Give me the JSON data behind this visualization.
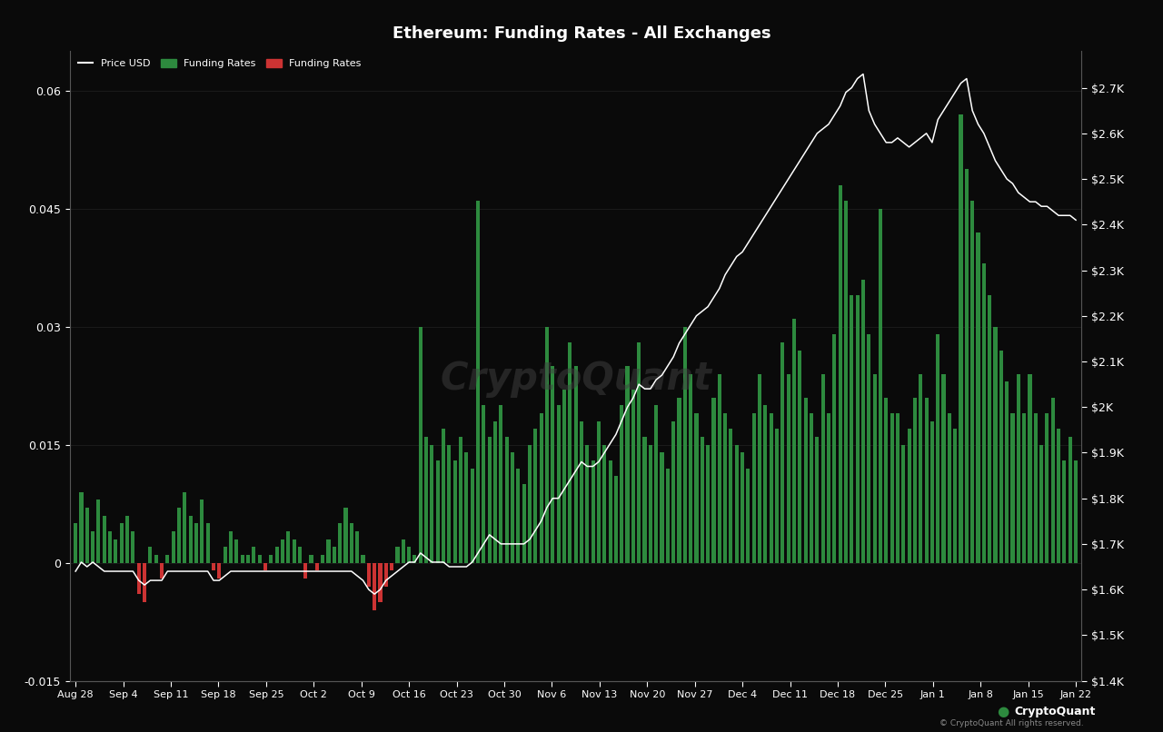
{
  "title": "Ethereum: Funding Rates - All Exchanges",
  "background_color": "#0a0a0a",
  "text_color": "#ffffff",
  "grid_color": "#222222",
  "bar_color_pos": "#2d8a3e",
  "bar_color_neg": "#cc3333",
  "line_color": "#ffffff",
  "ylim_left": [
    -0.015,
    0.065
  ],
  "ylim_right": [
    1400,
    2780
  ],
  "yticks_left": [
    -0.015,
    0,
    0.015,
    0.03,
    0.045,
    0.06
  ],
  "yticks_right": [
    1400,
    1500,
    1600,
    1700,
    1800,
    1900,
    2000,
    2100,
    2200,
    2300,
    2400,
    2500,
    2600,
    2700
  ],
  "xtick_labels": [
    "Aug 28",
    "Sep 4",
    "Sep 11",
    "Sep 18",
    "Sep 25",
    "Oct 2",
    "Oct 9",
    "Oct 16",
    "Oct 23",
    "Oct 30",
    "Nov 6",
    "Nov 13",
    "Nov 20",
    "Nov 27",
    "Dec 4",
    "Dec 11",
    "Dec 18",
    "Dec 25",
    "Jan 1",
    "Jan 8",
    "Jan 15",
    "Jan 22"
  ],
  "watermark": "CryptoQuant",
  "logo_text": "CryptoQuant",
  "copyright_text": "© CryptoQuant All rights reserved.",
  "funding_rates": [
    0.005,
    0.009,
    0.007,
    0.004,
    0.008,
    0.006,
    0.004,
    0.003,
    0.005,
    0.006,
    0.004,
    -0.004,
    -0.005,
    0.002,
    0.001,
    -0.002,
    0.001,
    0.004,
    0.007,
    0.009,
    0.006,
    0.005,
    0.008,
    0.005,
    -0.001,
    -0.002,
    0.002,
    0.004,
    0.003,
    0.001,
    0.001,
    0.002,
    0.001,
    -0.001,
    0.001,
    0.002,
    0.003,
    0.004,
    0.003,
    0.002,
    -0.002,
    0.001,
    -0.001,
    0.001,
    0.003,
    0.002,
    0.005,
    0.007,
    0.005,
    0.004,
    0.001,
    -0.003,
    -0.006,
    -0.005,
    -0.003,
    -0.001,
    0.002,
    0.003,
    0.002,
    0.001,
    0.03,
    0.016,
    0.015,
    0.013,
    0.017,
    0.015,
    0.013,
    0.016,
    0.014,
    0.012,
    0.046,
    0.02,
    0.016,
    0.018,
    0.02,
    0.016,
    0.014,
    0.012,
    0.01,
    0.015,
    0.017,
    0.019,
    0.03,
    0.025,
    0.02,
    0.022,
    0.028,
    0.025,
    0.018,
    0.015,
    0.013,
    0.018,
    0.015,
    0.013,
    0.011,
    0.02,
    0.025,
    0.022,
    0.028,
    0.016,
    0.015,
    0.02,
    0.014,
    0.012,
    0.018,
    0.021,
    0.03,
    0.024,
    0.019,
    0.016,
    0.015,
    0.021,
    0.024,
    0.019,
    0.017,
    0.015,
    0.014,
    0.012,
    0.019,
    0.024,
    0.02,
    0.019,
    0.017,
    0.028,
    0.024,
    0.031,
    0.027,
    0.021,
    0.019,
    0.016,
    0.024,
    0.019,
    0.029,
    0.048,
    0.046,
    0.034,
    0.034,
    0.036,
    0.029,
    0.024,
    0.045,
    0.021,
    0.019,
    0.019,
    0.015,
    0.017,
    0.021,
    0.024,
    0.021,
    0.018,
    0.029,
    0.024,
    0.019,
    0.017,
    0.057,
    0.05,
    0.046,
    0.042,
    0.038,
    0.034,
    0.03,
    0.027,
    0.023,
    0.019,
    0.024,
    0.019,
    0.024,
    0.019,
    0.015,
    0.019,
    0.021,
    0.017,
    0.013,
    0.016,
    0.013
  ],
  "price_usd": [
    1640,
    1660,
    1650,
    1660,
    1650,
    1640,
    1640,
    1640,
    1640,
    1640,
    1640,
    1620,
    1610,
    1620,
    1620,
    1620,
    1640,
    1640,
    1640,
    1640,
    1640,
    1640,
    1640,
    1640,
    1620,
    1620,
    1630,
    1640,
    1640,
    1640,
    1640,
    1640,
    1640,
    1640,
    1640,
    1640,
    1640,
    1640,
    1640,
    1640,
    1640,
    1640,
    1640,
    1640,
    1640,
    1640,
    1640,
    1640,
    1640,
    1630,
    1620,
    1600,
    1590,
    1600,
    1620,
    1630,
    1640,
    1650,
    1660,
    1660,
    1680,
    1670,
    1660,
    1660,
    1660,
    1650,
    1650,
    1650,
    1650,
    1660,
    1680,
    1700,
    1720,
    1710,
    1700,
    1700,
    1700,
    1700,
    1700,
    1710,
    1730,
    1750,
    1780,
    1800,
    1800,
    1820,
    1840,
    1860,
    1880,
    1870,
    1870,
    1880,
    1900,
    1920,
    1940,
    1970,
    2000,
    2020,
    2050,
    2040,
    2040,
    2060,
    2070,
    2090,
    2110,
    2140,
    2160,
    2180,
    2200,
    2210,
    2220,
    2240,
    2260,
    2290,
    2310,
    2330,
    2340,
    2360,
    2380,
    2400,
    2420,
    2440,
    2460,
    2480,
    2500,
    2520,
    2540,
    2560,
    2580,
    2600,
    2610,
    2620,
    2640,
    2660,
    2690,
    2700,
    2720,
    2730,
    2650,
    2620,
    2600,
    2580,
    2580,
    2590,
    2580,
    2570,
    2580,
    2590,
    2600,
    2580,
    2630,
    2650,
    2670,
    2690,
    2710,
    2720,
    2650,
    2620,
    2600,
    2570,
    2540,
    2520,
    2500,
    2490,
    2470,
    2460,
    2450,
    2450,
    2440,
    2440,
    2430,
    2420,
    2420,
    2420,
    2410
  ]
}
